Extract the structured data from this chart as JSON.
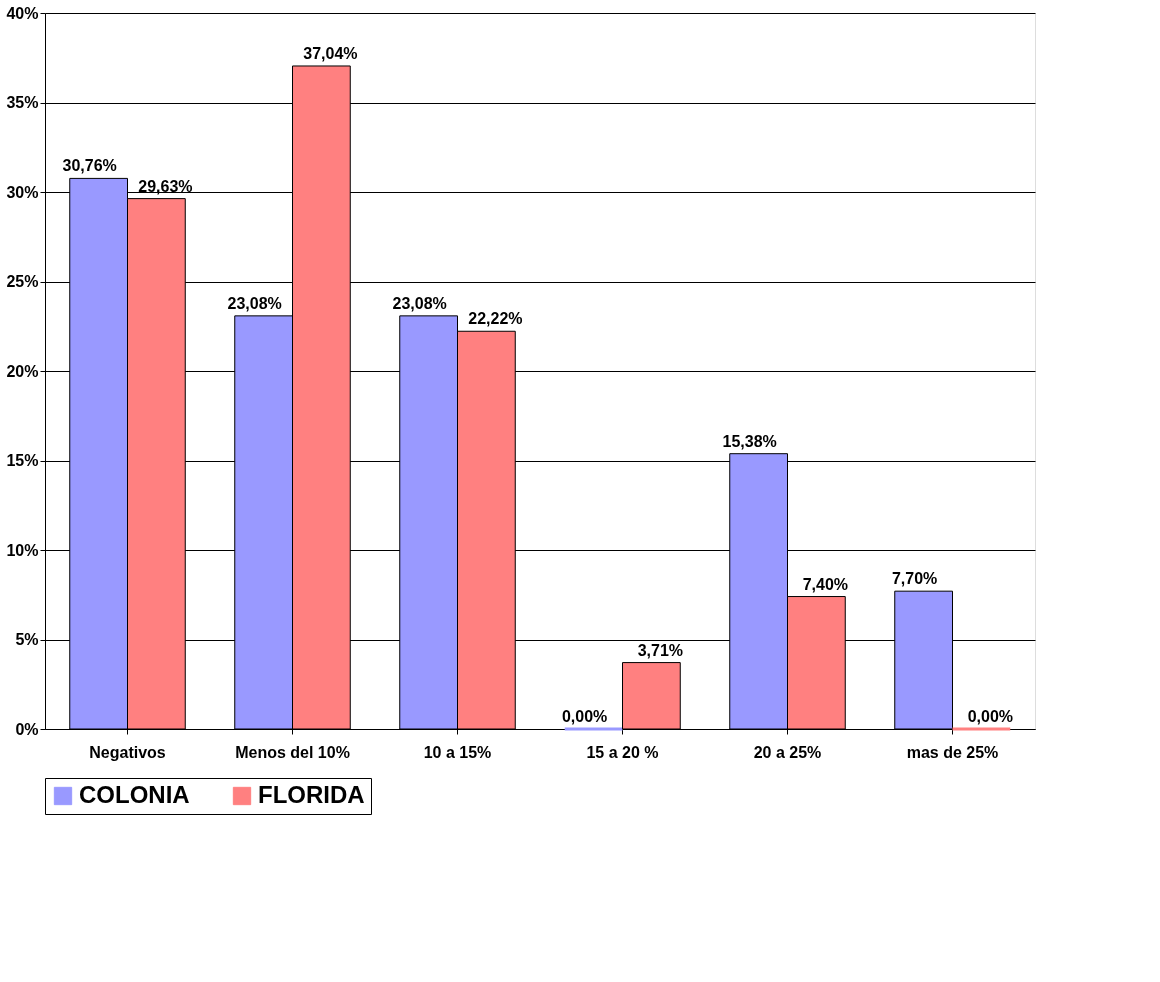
{
  "chart_data": {
    "type": "bar",
    "categories": [
      "Negativos",
      "Menos del 10%",
      "10 a 15%",
      "15 a 20 %",
      "20 a 25%",
      "mas de 25%"
    ],
    "series": [
      {
        "name": "COLONIA",
        "color": "#9999ff",
        "values": [
          30.76,
          23.08,
          23.08,
          0,
          15.38,
          7.7
        ],
        "value_labels": [
          "30,76%",
          "23,08%",
          "23,08%",
          "0,00%",
          "15,38%",
          "7,70%"
        ]
      },
      {
        "name": "FLORIDA",
        "color": "#ff8080",
        "values": [
          29.63,
          37.04,
          22.22,
          3.71,
          7.4,
          0
        ],
        "value_labels": [
          "29,63%",
          "37,04%",
          "22,22%",
          "3,71%",
          "7,40%",
          "0,00%"
        ]
      }
    ],
    "ylim": [
      0,
      40
    ],
    "yticks": [
      {
        "value": 0,
        "label": "0%"
      },
      {
        "value": 5,
        "label": "5%"
      },
      {
        "value": 10,
        "label": "10%"
      },
      {
        "value": 15,
        "label": "15%"
      },
      {
        "value": 20,
        "label": "20%"
      },
      {
        "value": 25,
        "label": "25%"
      },
      {
        "value": 30,
        "label": "30%"
      },
      {
        "value": 35,
        "label": "35%"
      },
      {
        "value": 40,
        "label": "40%"
      }
    ],
    "grid": "y",
    "legend": "bottom"
  }
}
